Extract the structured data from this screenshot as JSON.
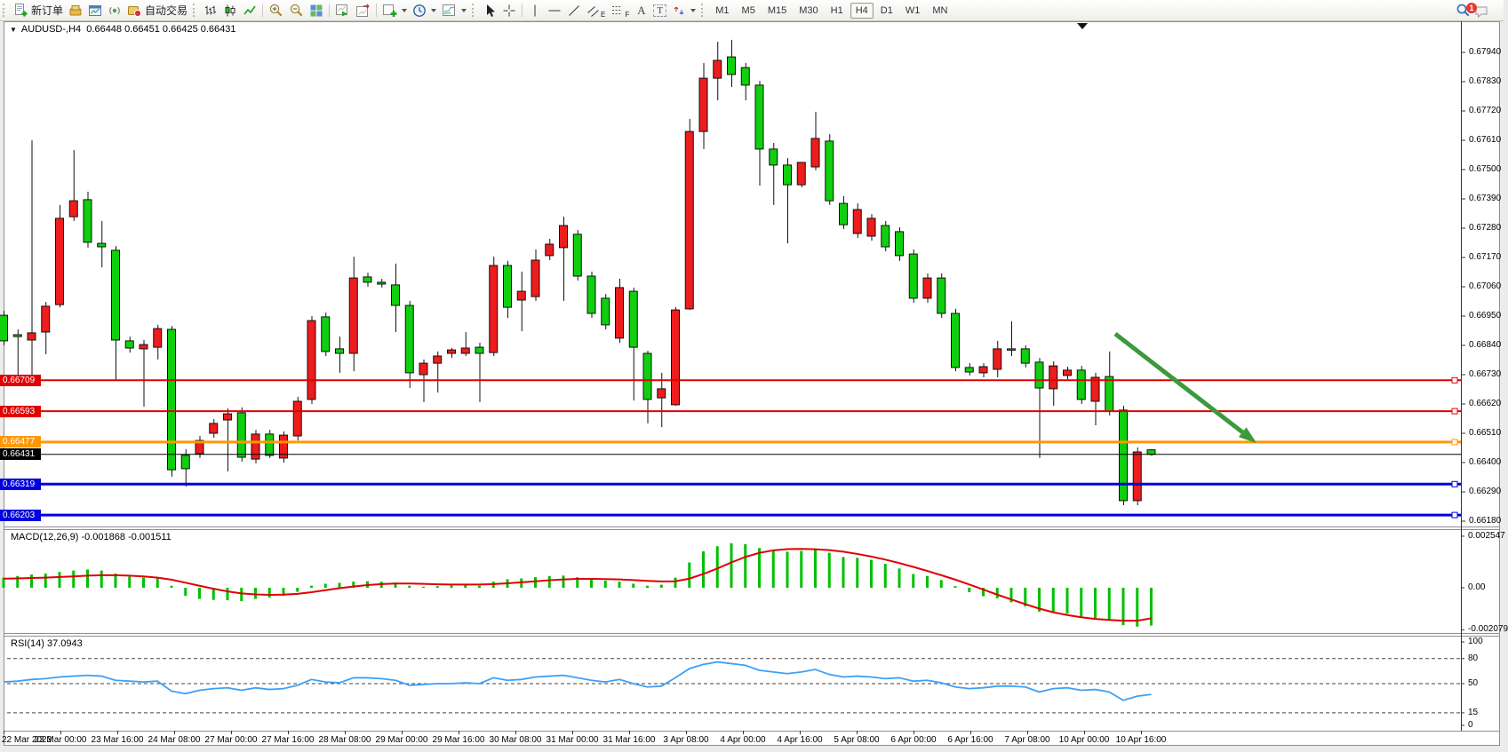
{
  "toolbar": {
    "new_order_label": "新订单",
    "auto_trading_label": "自动交易",
    "timeframes": [
      "M1",
      "M5",
      "M15",
      "M30",
      "H1",
      "H4",
      "D1",
      "W1",
      "MN"
    ],
    "active_timeframe": "H4",
    "notification_badge": "1",
    "tool_glyphs": {
      "channel": "E",
      "fibonacci": "F",
      "text": "A",
      "label": "T"
    }
  },
  "chart_data": {
    "type": "candlestick",
    "title": "AUDUSD-,H4",
    "ohlc_text": "0.66448 0.66451 0.66425 0.66431",
    "current": {
      "open": 0.66448,
      "high": 0.66451,
      "low": 0.66425,
      "close": 0.66431
    },
    "price_axis": {
      "ticks": [
        "0.67940",
        "0.67830",
        "0.67720",
        "0.67610",
        "0.67500",
        "0.67390",
        "0.67280",
        "0.67170",
        "0.67060",
        "0.66950",
        "0.66840",
        "0.66730",
        "0.66620",
        "0.66510",
        "0.66400",
        "0.66290",
        "0.66180"
      ],
      "top_value": 0.6794,
      "step": 0.0011
    },
    "time_labels": [
      "22 Mar 2023",
      "23 Mar 00:00",
      "23 Mar 16:00",
      "24 Mar 08:00",
      "27 Mar 00:00",
      "27 Mar 16:00",
      "28 Mar 08:00",
      "29 Mar 00:00",
      "29 Mar 16:00",
      "30 Mar 08:00",
      "31 Mar 00:00",
      "31 Mar 16:00",
      "3 Apr 08:00",
      "4 Apr 00:00",
      "4 Apr 16:00",
      "5 Apr 08:00",
      "6 Apr 00:00",
      "6 Apr 16:00",
      "7 Apr 08:00",
      "10 Apr 00:00",
      "10 Apr 16:00"
    ],
    "colors": {
      "bull": "#ee1c1c",
      "bear": "#0fcf0f",
      "outline": "#111111"
    },
    "candles": [
      [
        0.66953,
        0.6697,
        0.6684,
        0.66857
      ],
      [
        0.6688,
        0.669,
        0.6672,
        0.66873
      ],
      [
        0.6686,
        0.6761,
        0.6671,
        0.66887
      ],
      [
        0.6689,
        0.67003,
        0.66807,
        0.66987
      ],
      [
        0.66993,
        0.67367,
        0.66983,
        0.67317
      ],
      [
        0.67323,
        0.67573,
        0.67307,
        0.67383
      ],
      [
        0.67387,
        0.67417,
        0.67207,
        0.67227
      ],
      [
        0.67223,
        0.67307,
        0.67133,
        0.6721
      ],
      [
        0.67197,
        0.67213,
        0.6671,
        0.6686
      ],
      [
        0.66857,
        0.66873,
        0.66813,
        0.6683
      ],
      [
        0.66827,
        0.6686,
        0.6661,
        0.66843
      ],
      [
        0.66833,
        0.66917,
        0.66787,
        0.66903
      ],
      [
        0.669,
        0.66913,
        0.66347,
        0.66373
      ],
      [
        0.66427,
        0.6645,
        0.6631,
        0.66377
      ],
      [
        0.66433,
        0.665,
        0.66417,
        0.66483
      ],
      [
        0.6651,
        0.66563,
        0.66493,
        0.66547
      ],
      [
        0.6656,
        0.66603,
        0.66367,
        0.66583
      ],
      [
        0.66587,
        0.66607,
        0.66403,
        0.6642
      ],
      [
        0.66413,
        0.66523,
        0.66397,
        0.66507
      ],
      [
        0.66507,
        0.66523,
        0.66417,
        0.66427
      ],
      [
        0.66417,
        0.66517,
        0.664,
        0.66503
      ],
      [
        0.665,
        0.66647,
        0.66483,
        0.6663
      ],
      [
        0.66637,
        0.6695,
        0.6662,
        0.66933
      ],
      [
        0.66947,
        0.66963,
        0.668,
        0.66817
      ],
      [
        0.66827,
        0.66873,
        0.66737,
        0.6681
      ],
      [
        0.6681,
        0.67173,
        0.66743,
        0.67093
      ],
      [
        0.67097,
        0.67113,
        0.6706,
        0.67077
      ],
      [
        0.67077,
        0.6709,
        0.67057,
        0.6707
      ],
      [
        0.67067,
        0.67147,
        0.6689,
        0.6699
      ],
      [
        0.6699,
        0.67007,
        0.6668,
        0.66737
      ],
      [
        0.6673,
        0.66787,
        0.66627,
        0.66773
      ],
      [
        0.66773,
        0.66817,
        0.66663,
        0.668
      ],
      [
        0.6681,
        0.6683,
        0.66793,
        0.66823
      ],
      [
        0.6681,
        0.6689,
        0.668,
        0.6683
      ],
      [
        0.66833,
        0.6685,
        0.66627,
        0.6681
      ],
      [
        0.66813,
        0.67173,
        0.668,
        0.6714
      ],
      [
        0.6714,
        0.67157,
        0.66943,
        0.66983
      ],
      [
        0.6701,
        0.67117,
        0.66893,
        0.67043
      ],
      [
        0.67023,
        0.672,
        0.67007,
        0.6716
      ],
      [
        0.67177,
        0.6724,
        0.6716,
        0.6722
      ],
      [
        0.67207,
        0.67323,
        0.67007,
        0.6729
      ],
      [
        0.67257,
        0.67273,
        0.67083,
        0.671
      ],
      [
        0.671,
        0.67117,
        0.66943,
        0.6696
      ],
      [
        0.67017,
        0.67033,
        0.669,
        0.66917
      ],
      [
        0.66867,
        0.6709,
        0.6685,
        0.67057
      ],
      [
        0.67043,
        0.67057,
        0.66633,
        0.66833
      ],
      [
        0.6681,
        0.6682,
        0.66547,
        0.66637
      ],
      [
        0.66643,
        0.66737,
        0.66533,
        0.66677
      ],
      [
        0.66617,
        0.66983,
        0.66613,
        0.66973
      ],
      [
        0.66977,
        0.6769,
        0.66973,
        0.67643
      ],
      [
        0.67643,
        0.679,
        0.67577,
        0.67843
      ],
      [
        0.67843,
        0.6798,
        0.6776,
        0.6791
      ],
      [
        0.67923,
        0.67987,
        0.6781,
        0.67857
      ],
      [
        0.67883,
        0.679,
        0.6776,
        0.67817
      ],
      [
        0.67817,
        0.67833,
        0.6744,
        0.67577
      ],
      [
        0.67577,
        0.676,
        0.67367,
        0.67517
      ],
      [
        0.67517,
        0.67543,
        0.67223,
        0.67443
      ],
      [
        0.67443,
        0.67457,
        0.67433,
        0.67527
      ],
      [
        0.6751,
        0.67717,
        0.67497,
        0.67617
      ],
      [
        0.67607,
        0.67633,
        0.67367,
        0.67383
      ],
      [
        0.67373,
        0.674,
        0.67277,
        0.67293
      ],
      [
        0.6726,
        0.67373,
        0.67243,
        0.6735
      ],
      [
        0.6725,
        0.67333,
        0.67233,
        0.67317
      ],
      [
        0.6729,
        0.67307,
        0.67193,
        0.6721
      ],
      [
        0.67267,
        0.67283,
        0.67157,
        0.67177
      ],
      [
        0.67183,
        0.672,
        0.67,
        0.67017
      ],
      [
        0.67017,
        0.6711,
        0.67,
        0.67093
      ],
      [
        0.67093,
        0.6711,
        0.66943,
        0.6696
      ],
      [
        0.6696,
        0.66977,
        0.66743,
        0.66757
      ],
      [
        0.66757,
        0.66773,
        0.66727,
        0.6674
      ],
      [
        0.66737,
        0.66773,
        0.6672,
        0.6676
      ],
      [
        0.6675,
        0.66857,
        0.6672,
        0.66827
      ],
      [
        0.66827,
        0.6693,
        0.668,
        0.66823
      ],
      [
        0.66827,
        0.6684,
        0.66757,
        0.66773
      ],
      [
        0.66777,
        0.66793,
        0.66417,
        0.6668
      ],
      [
        0.66677,
        0.6678,
        0.66613,
        0.66763
      ],
      [
        0.66727,
        0.6676,
        0.66713,
        0.66747
      ],
      [
        0.66747,
        0.66763,
        0.6662,
        0.66637
      ],
      [
        0.6663,
        0.66737,
        0.6654,
        0.6672
      ],
      [
        0.66723,
        0.66817,
        0.66577,
        0.66593
      ],
      [
        0.66597,
        0.66613,
        0.6624,
        0.66257
      ],
      [
        0.66257,
        0.66457,
        0.6624,
        0.6644
      ],
      [
        0.66448,
        0.66451,
        0.66425,
        0.66431
      ]
    ],
    "horizontal_lines": [
      {
        "value": 0.66709,
        "label": "0.66709",
        "color": "#e00000",
        "width": 2,
        "handles": true
      },
      {
        "value": 0.66593,
        "label": "0.66593",
        "color": "#e00000",
        "width": 2,
        "handles": true
      },
      {
        "value": 0.66477,
        "label": "0.66477",
        "color": "#ff9800",
        "width": 3,
        "handles": true
      },
      {
        "value": 0.66431,
        "label": "0.66431",
        "color": "#000000",
        "width": 1,
        "handles": false
      },
      {
        "value": 0.66319,
        "label": "0.66319",
        "color": "#0000dd",
        "width": 3,
        "handles": true
      },
      {
        "value": 0.66203,
        "label": "0.66203",
        "color": "#0000dd",
        "width": 3,
        "handles": true
      }
    ],
    "trend_arrow": {
      "from_x": 1255,
      "from_y": 376,
      "to_x": 1414,
      "to_y": 499,
      "color": "#3c9a3c"
    },
    "indicators": [
      {
        "name": "MACD",
        "label": "MACD(12,26,9) -0.001868 -0.001511",
        "axis_labels": [
          "0.002547",
          "0.00",
          "-0.002079"
        ],
        "axis_values": [
          0.002547,
          0,
          -0.002079
        ],
        "histogram_color": "#00c000",
        "signal_color": "#e00000",
        "histogram": [
          0.0005,
          0.00058,
          0.00065,
          0.0007,
          0.00078,
          0.00085,
          0.0009,
          0.00085,
          0.0007,
          0.00055,
          0.0005,
          0.00048,
          0.0001,
          -0.0004,
          -0.00055,
          -0.0006,
          -0.00062,
          -0.00066,
          -0.00055,
          -0.00048,
          -0.0004,
          -0.0002,
          0.0001,
          0.0002,
          0.00024,
          0.0003,
          0.00032,
          0.0003,
          0.00026,
          0.0001,
          5e-05,
          8e-05,
          0.00012,
          0.00015,
          0.0001,
          0.0003,
          0.00042,
          0.00046,
          0.00052,
          0.00058,
          0.0006,
          0.00052,
          0.00042,
          0.00035,
          0.0003,
          0.0002,
          0.0001,
          0.00015,
          0.0005,
          0.00125,
          0.0018,
          0.00205,
          0.0022,
          0.00215,
          0.00196,
          0.00185,
          0.00178,
          0.00182,
          0.00188,
          0.00173,
          0.00152,
          0.00148,
          0.00138,
          0.00118,
          0.00095,
          0.00068,
          0.00058,
          0.00038,
          8e-05,
          -0.00022,
          -0.00042,
          -0.00052,
          -0.00072,
          -0.00092,
          -0.00118,
          -0.00122,
          -0.00128,
          -0.00142,
          -0.00152,
          -0.00158,
          -0.00185,
          -0.00192,
          -0.001868
        ],
        "signal": [
          0.00045,
          0.00046,
          0.00048,
          0.0005,
          0.00053,
          0.00056,
          0.0006,
          0.00062,
          0.00062,
          0.0006,
          0.00056,
          0.0005,
          0.0004,
          0.00025,
          0.0001,
          -5e-05,
          -0.00018,
          -0.00028,
          -0.00033,
          -0.00035,
          -0.00034,
          -0.0003,
          -0.00022,
          -0.00012,
          -2e-05,
          6e-05,
          0.00013,
          0.00018,
          0.00021,
          0.00021,
          0.00019,
          0.00017,
          0.00016,
          0.00016,
          0.00016,
          0.00018,
          0.00022,
          0.00027,
          0.00032,
          0.00037,
          0.00041,
          0.00044,
          0.00044,
          0.00043,
          0.00041,
          0.00038,
          0.00034,
          0.00031,
          0.00032,
          0.00045,
          0.00068,
          0.00095,
          0.00125,
          0.00152,
          0.00172,
          0.00185,
          0.00191,
          0.00192,
          0.0019,
          0.00186,
          0.00178,
          0.00167,
          0.00154,
          0.00139,
          0.00122,
          0.00103,
          0.00083,
          0.00062,
          0.0004,
          0.00016,
          -9e-05,
          -0.00034,
          -0.00058,
          -0.00081,
          -0.00103,
          -0.00121,
          -0.00135,
          -0.00146,
          -0.00154,
          -0.00159,
          -0.00163,
          -0.00163,
          -0.001511
        ]
      },
      {
        "name": "RSI",
        "label": "RSI(14) 37.0943",
        "axis_labels": [
          "100",
          "80",
          "50",
          "15",
          "0"
        ],
        "axis_values": [
          100,
          80,
          50,
          15,
          0
        ],
        "levels": [
          80,
          50,
          15
        ],
        "line_color": "#3da0f5",
        "series": [
          52,
          53,
          55,
          56,
          58,
          59,
          60,
          59,
          54,
          53,
          52,
          53,
          41,
          38,
          42,
          44,
          45,
          42,
          45,
          43,
          44,
          48,
          55,
          52,
          51,
          57,
          57,
          56,
          54,
          48,
          49,
          50,
          50,
          51,
          50,
          57,
          54,
          55,
          58,
          59,
          60,
          57,
          54,
          52,
          55,
          50,
          46,
          47,
          57,
          68,
          73,
          76,
          74,
          72,
          66,
          64,
          62,
          64,
          67,
          61,
          58,
          59,
          58,
          56,
          57,
          53,
          54,
          51,
          46,
          44,
          45,
          47,
          47,
          46,
          40,
          44,
          45,
          42,
          43,
          40,
          30,
          35,
          37.09
        ]
      }
    ]
  }
}
